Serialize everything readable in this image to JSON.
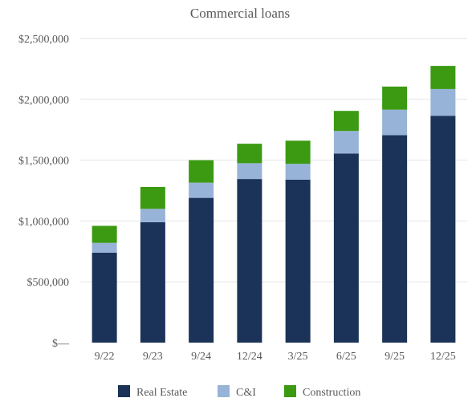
{
  "chart_data": {
    "type": "bar",
    "stacked": true,
    "title": "Commercial loans",
    "categories": [
      "9/22",
      "9/23",
      "9/24",
      "12/24",
      "3/25",
      "6/25",
      "9/25",
      "12/25"
    ],
    "series": [
      {
        "name": "Real Estate",
        "color": "#1b3358",
        "values": [
          740000,
          990000,
          1190000,
          1345000,
          1340000,
          1555000,
          1705000,
          1865000
        ]
      },
      {
        "name": "C&I",
        "color": "#98b3d8",
        "values": [
          80000,
          110000,
          125000,
          130000,
          130000,
          185000,
          210000,
          220000
        ]
      },
      {
        "name": "Construction",
        "color": "#3b9a12",
        "values": [
          140000,
          180000,
          185000,
          160000,
          190000,
          165000,
          190000,
          190000
        ]
      }
    ],
    "ylim": [
      0,
      2500000
    ],
    "yticks": [
      0,
      500000,
      1000000,
      1500000,
      2000000,
      2500000
    ],
    "ytick_labels": [
      "$—",
      "$500,000",
      "$1,000,000",
      "$1,500,000",
      "$2,000,000",
      "$2,500,000"
    ],
    "grid": true,
    "legend": "bottom"
  }
}
